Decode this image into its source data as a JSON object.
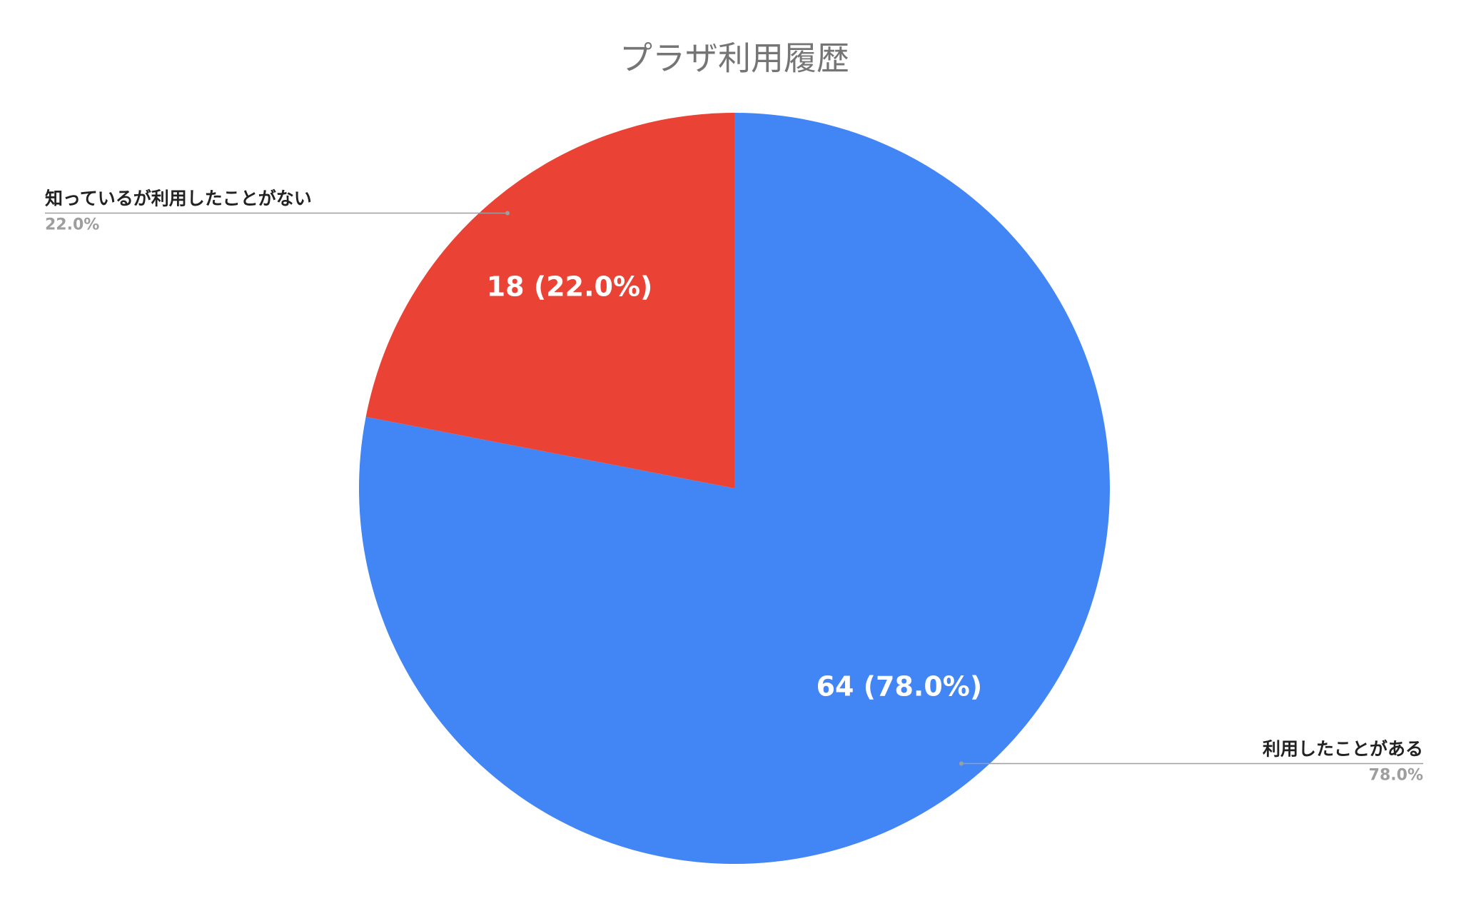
{
  "chart_data": {
    "type": "pie",
    "title": "プラザ利用履歴",
    "categories": [
      "利用したことがある",
      "知っているが利用したことがない"
    ],
    "values": [
      64,
      18
    ],
    "value_labels": [
      "64 (78.0%)",
      "18 (22.0%)"
    ],
    "percentages": [
      78,
      22
    ],
    "percentage_labels": [
      "78.0%",
      "22.0%"
    ],
    "colors": [
      "#4285f4",
      "#ea4335"
    ]
  }
}
